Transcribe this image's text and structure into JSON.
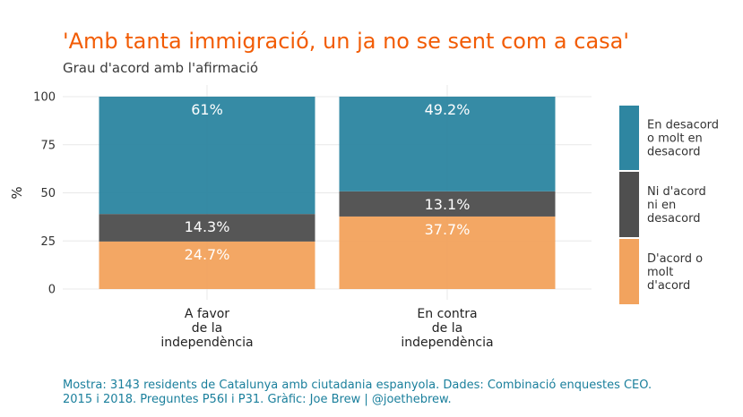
{
  "title": "'Amb tanta immigració, un ja no se sent com a casa'",
  "subtitle": "Grau d'acord amb l'afirmació",
  "caption_line1": "Mostra: 3143 residents de Catalunya amb ciutadania espanyola. Dades: Combinació enquestes CEO.",
  "caption_line2": "2015 i 2018. Preguntes P56I i P31. Gràfic: Joe Brew | @joethebrew.",
  "chart_data": {
    "type": "bar",
    "stacked": true,
    "categories": [
      [
        "A favor",
        "de la",
        "independència"
      ],
      [
        "En contra",
        "de la",
        "independència"
      ]
    ],
    "series": [
      {
        "name": [
          "D'acord o",
          "molt",
          "d'acord"
        ],
        "values": [
          24.7,
          37.7
        ],
        "labels": [
          "24.7%",
          "37.7%"
        ],
        "color": "#f2a35e"
      },
      {
        "name": [
          "Ni d'acord",
          "ni en",
          "desacord"
        ],
        "values": [
          14.3,
          13.1
        ],
        "labels": [
          "14.3%",
          "13.1%"
        ],
        "color": "#4f4f4f"
      },
      {
        "name": [
          "En desacord",
          "o molt en",
          "desacord"
        ],
        "values": [
          61,
          49.2
        ],
        "labels": [
          "61%",
          "49.2%"
        ],
        "color": "#2e86a1"
      }
    ],
    "ylabel": "%",
    "ylim": [
      0,
      100
    ],
    "yticks": [
      0,
      25,
      50,
      75,
      100
    ],
    "ytick_labels": [
      "0",
      "25",
      "50",
      "75",
      "100"
    ],
    "grid": true,
    "legend_position": "right"
  }
}
